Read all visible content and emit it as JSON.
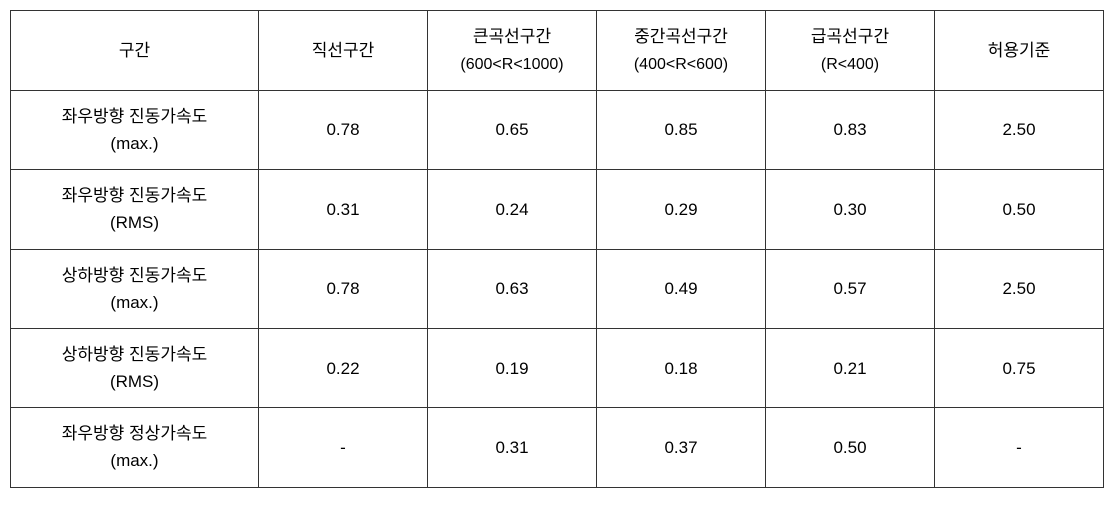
{
  "table": {
    "headers": {
      "section": "구간",
      "straight": "직선구간",
      "large_curve_line1": "큰곡선구간",
      "large_curve_line2": "(600<R<1000)",
      "mid_curve_line1": "중간곡선구간",
      "mid_curve_line2": "(400<R<600)",
      "sharp_curve_line1": "급곡선구간",
      "sharp_curve_line2": "(R<400)",
      "tolerance": "허용기준"
    },
    "rows": [
      {
        "label_line1": "좌우방향 진동가속도",
        "label_line2": "(max.)",
        "straight": "0.78",
        "large_curve": "0.65",
        "mid_curve": "0.85",
        "sharp_curve": "0.83",
        "tolerance": "2.50"
      },
      {
        "label_line1": "좌우방향 진동가속도",
        "label_line2": "(RMS)",
        "straight": "0.31",
        "large_curve": "0.24",
        "mid_curve": "0.29",
        "sharp_curve": "0.30",
        "tolerance": "0.50"
      },
      {
        "label_line1": "상하방향 진동가속도",
        "label_line2": "(max.)",
        "straight": "0.78",
        "large_curve": "0.63",
        "mid_curve": "0.49",
        "sharp_curve": "0.57",
        "tolerance": "2.50"
      },
      {
        "label_line1": "상하방향 진동가속도",
        "label_line2": "(RMS)",
        "straight": "0.22",
        "large_curve": "0.19",
        "mid_curve": "0.18",
        "sharp_curve": "0.21",
        "tolerance": "0.75"
      },
      {
        "label_line1": "좌우방향 정상가속도",
        "label_line2": "(max.)",
        "straight": "-",
        "large_curve": "0.31",
        "mid_curve": "0.37",
        "sharp_curve": "0.50",
        "tolerance": "-"
      }
    ],
    "style": {
      "border_color": "#333333",
      "background_color": "#ffffff",
      "text_color": "#000000",
      "font_size_main": 17,
      "font_size_sub": 16
    }
  }
}
